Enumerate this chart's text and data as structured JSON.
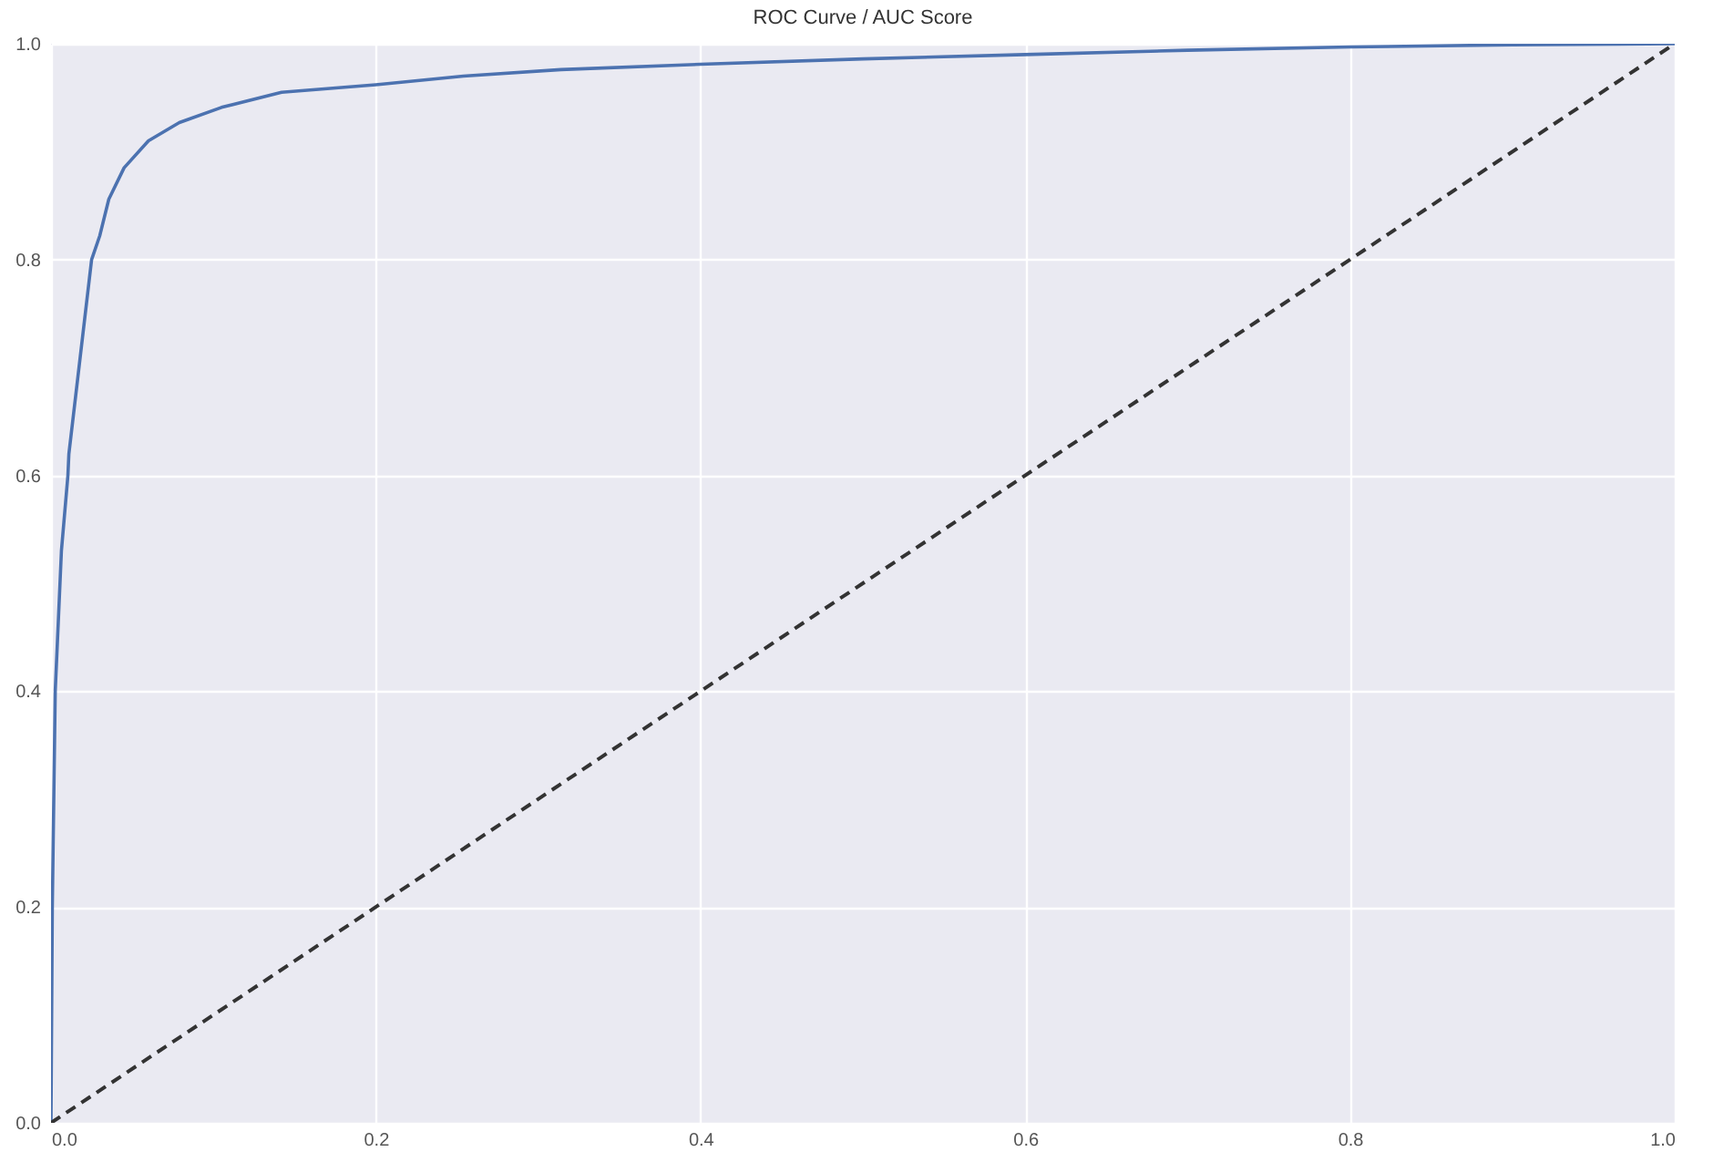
{
  "chart_data": {
    "type": "line",
    "title": "ROC Curve / AUC Score",
    "xlim": [
      0,
      1
    ],
    "ylim": [
      0,
      1
    ],
    "xticks": [
      {
        "value": 0,
        "label": "0.0"
      },
      0.2,
      0.4,
      0.6,
      0.8,
      {
        "value": 1,
        "label": "1.0"
      }
    ],
    "yticks": [
      {
        "value": 0,
        "label": "0.0"
      },
      0.2,
      0.4,
      0.6,
      0.8,
      {
        "value": 1,
        "label": "1.0"
      }
    ],
    "grid": true,
    "marker": "none",
    "series": [
      {
        "color": "#4c72b0",
        "line_style": "solid",
        "x": [
          0,
          0.0008,
          0.0026,
          0.0064,
          0.0104,
          0.011,
          0.025,
          0.03,
          0.0356,
          0.045,
          0.06,
          0.079,
          0.105,
          0.142,
          0.2,
          0.254,
          0.314,
          0.4,
          0.5,
          0.6,
          0.7,
          0.8,
          0.9,
          1
        ],
        "values": [
          0,
          0.2,
          0.4,
          0.53,
          0.6,
          0.62,
          0.8,
          0.822,
          0.856,
          0.885,
          0.91,
          0.927,
          0.941,
          0.955,
          0.962,
          0.97,
          0.976,
          0.981,
          0.986,
          0.99,
          0.994,
          0.997,
          0.999,
          1
        ]
      },
      {
        "color": "#333333",
        "line_style": "dashed",
        "x": [
          0,
          1
        ],
        "values": [
          0,
          1
        ]
      }
    ]
  }
}
